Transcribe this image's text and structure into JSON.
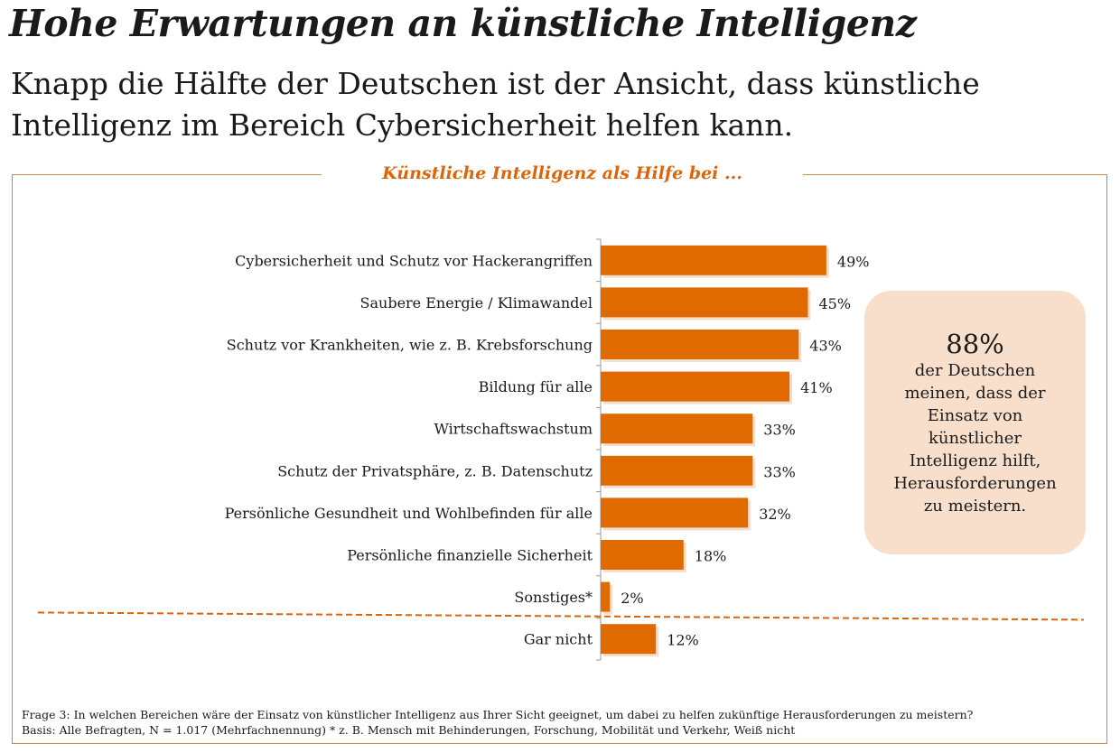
{
  "header": {
    "title": "Hohe Erwartungen an künstliche Intelligenz",
    "subtitle": "Knapp die Hälfte der Deutschen ist der Ansicht, dass künstliche Intelligenz im Bereich Cybersicherheit helfen kann."
  },
  "callout": {
    "value": "88%",
    "text": "der Deutschen meinen, dass der Einsatz von künstlicher Intelligenz hilft, Herausforderungen zu meistern."
  },
  "footnote": {
    "line1": "Frage 3: In welchen Bereichen wäre der Einsatz von künstlicher Intelligenz aus Ihrer Sicht geeignet, um dabei zu helfen zukünftige Herausforderungen zu meistern?",
    "line2": "Basis: Alle Befragten, N = 1.017 (Mehrfachnennung) * z. B.  Mensch mit Behinderungen, Forschung, Mobilität und Verkehr, Weiß nicht"
  },
  "colors": {
    "bar": "#E06A00",
    "accent": "#D9660C",
    "callout_bg": "#F8DFCB",
    "frame": "#C98A4A"
  },
  "chart_data": {
    "type": "bar",
    "orientation": "horizontal",
    "title": "Künstliche Intelligenz als Hilfe bei ...",
    "unit": "%",
    "categories": [
      "Cybersicherheit und Schutz vor Hackerangriffen",
      "Saubere Energie / Klimawandel",
      "Schutz vor Krankheiten, wie z. B. Krebsforschung",
      "Bildung für alle",
      "Wirtschaftswachstum",
      "Schutz der Privatsphäre, z. B. Datenschutz",
      "Persönliche Gesundheit und Wohlbefinden für alle",
      "Persönliche finanzielle Sicherheit",
      "Sonstiges*",
      "Gar nicht"
    ],
    "values": [
      49,
      45,
      43,
      41,
      33,
      33,
      32,
      18,
      2,
      12
    ],
    "labels": [
      "49%",
      "45%",
      "43%",
      "41%",
      "33%",
      "33%",
      "32%",
      "18%",
      "2%",
      "12%"
    ],
    "separator_before_index": 9,
    "grid": false
  }
}
